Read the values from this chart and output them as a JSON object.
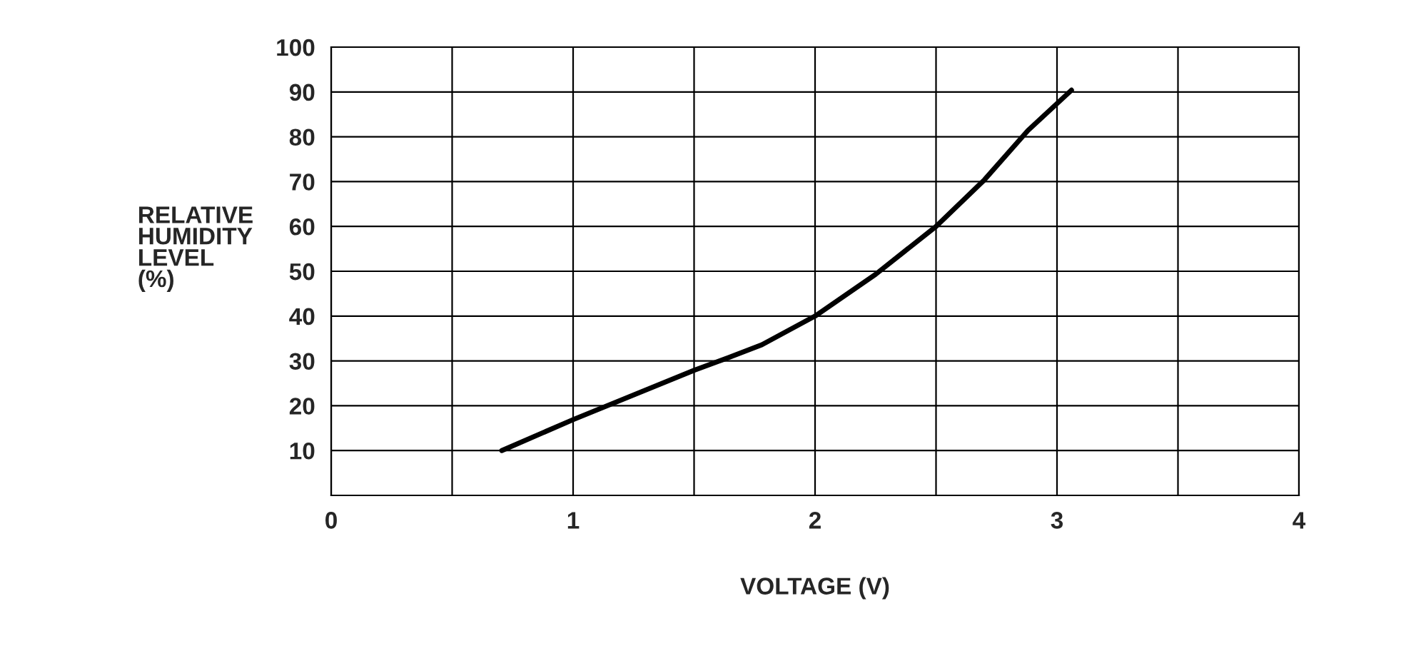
{
  "chart_data": {
    "type": "line",
    "xlabel": "VOLTAGE (V)",
    "ylabel": "RELATIVE\nHUMIDITY\nLEVEL\n(%)",
    "x": [
      0.705,
      1.0,
      1.5,
      1.64,
      1.78,
      2.0,
      2.25,
      2.5,
      2.7,
      2.88,
      3.06
    ],
    "series": [
      {
        "color": "#000000",
        "values": [
          10,
          16.9,
          27.9,
          30.7,
          33.6,
          40,
          49.3,
          60,
          70.4,
          81.4,
          90.4
        ]
      }
    ],
    "xlim": [
      0,
      4
    ],
    "xticks": [
      0,
      {
        "value": 0.5,
        "label": null
      },
      1,
      {
        "value": 1.5,
        "label": null
      },
      2,
      {
        "value": 2.5,
        "label": null
      },
      3,
      {
        "value": 3.5,
        "label": null
      },
      4
    ],
    "ylim": [
      0,
      100
    ],
    "yticks": [
      10,
      20,
      30,
      40,
      50,
      60,
      70,
      80,
      90,
      100
    ],
    "grid": true,
    "legend": false,
    "marker": "none",
    "line_style": "solid"
  }
}
